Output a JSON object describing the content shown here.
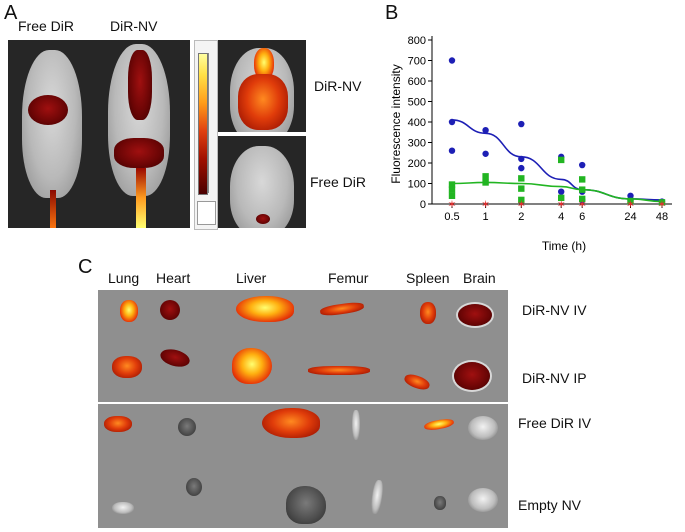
{
  "panel_a": {
    "letter": "A",
    "label_free_dir": "Free DiR",
    "label_dir_nv": "DiR-NV",
    "side_label_top": "DiR-NV",
    "side_label_bottom": "Free DiR"
  },
  "panel_b": {
    "letter": "B"
  },
  "panel_c": {
    "letter": "C",
    "organs": [
      "Lung",
      "Heart",
      "Liver",
      "Femur",
      "Spleen",
      "Brain"
    ],
    "rows": [
      "DiR-NV IV",
      "DiR-NV IP",
      "Free DiR IV",
      "Empty NV"
    ]
  },
  "chart_data": {
    "type": "scatter",
    "xlabel": "Time (h)",
    "ylabel": "Fluorescence intensity",
    "x_tick_labels": [
      "0.5",
      "1",
      "2",
      "4",
      "6",
      "24",
      "48"
    ],
    "ylim": [
      0,
      800
    ],
    "y_ticks": [
      0,
      100,
      200,
      300,
      400,
      500,
      600,
      700,
      800
    ],
    "series": [
      {
        "color": "#1d1fb5",
        "marker": "circle",
        "points": [
          {
            "x": "0.5",
            "y": 700
          },
          {
            "x": "0.5",
            "y": 400
          },
          {
            "x": "0.5",
            "y": 260
          },
          {
            "x": "1",
            "y": 360
          },
          {
            "x": "1",
            "y": 245
          },
          {
            "x": "2",
            "y": 390
          },
          {
            "x": "2",
            "y": 220
          },
          {
            "x": "2",
            "y": 175
          },
          {
            "x": "4",
            "y": 230
          },
          {
            "x": "4",
            "y": 60
          },
          {
            "x": "6",
            "y": 190
          },
          {
            "x": "6",
            "y": 60
          },
          {
            "x": "6",
            "y": 20
          },
          {
            "x": "24",
            "y": 40
          },
          {
            "x": "24",
            "y": 20
          },
          {
            "x": "48",
            "y": 12
          }
        ],
        "fit": [
          {
            "x": "0.5",
            "y": 410
          },
          {
            "x": "1",
            "y": 345
          },
          {
            "x": "2",
            "y": 230
          },
          {
            "x": "4",
            "y": 120
          },
          {
            "x": "6",
            "y": 70
          },
          {
            "x": "24",
            "y": 25
          },
          {
            "x": "48",
            "y": 20
          }
        ]
      },
      {
        "color": "#22b522",
        "marker": "square",
        "points": [
          {
            "x": "0.5",
            "y": 95
          },
          {
            "x": "0.5",
            "y": 70
          },
          {
            "x": "0.5",
            "y": 40
          },
          {
            "x": "1",
            "y": 135
          },
          {
            "x": "1",
            "y": 105
          },
          {
            "x": "2",
            "y": 125
          },
          {
            "x": "2",
            "y": 75
          },
          {
            "x": "2",
            "y": 20
          },
          {
            "x": "4",
            "y": 215
          },
          {
            "x": "4",
            "y": 30
          },
          {
            "x": "6",
            "y": 120
          },
          {
            "x": "6",
            "y": 70
          },
          {
            "x": "6",
            "y": 25
          },
          {
            "x": "24",
            "y": 15
          },
          {
            "x": "48",
            "y": 8
          }
        ],
        "fit": [
          {
            "x": "0.5",
            "y": 100
          },
          {
            "x": "1",
            "y": 105
          },
          {
            "x": "2",
            "y": 100
          },
          {
            "x": "4",
            "y": 85
          },
          {
            "x": "6",
            "y": 70
          },
          {
            "x": "24",
            "y": 25
          },
          {
            "x": "48",
            "y": 12
          }
        ]
      },
      {
        "color": "#e03030",
        "marker": "star",
        "points": [
          {
            "x": "0.5",
            "y": 0
          },
          {
            "x": "1",
            "y": 0
          },
          {
            "x": "2",
            "y": 0
          },
          {
            "x": "4",
            "y": 0
          },
          {
            "x": "6",
            "y": 0
          },
          {
            "x": "24",
            "y": 0
          },
          {
            "x": "48",
            "y": 0
          }
        ]
      }
    ]
  }
}
